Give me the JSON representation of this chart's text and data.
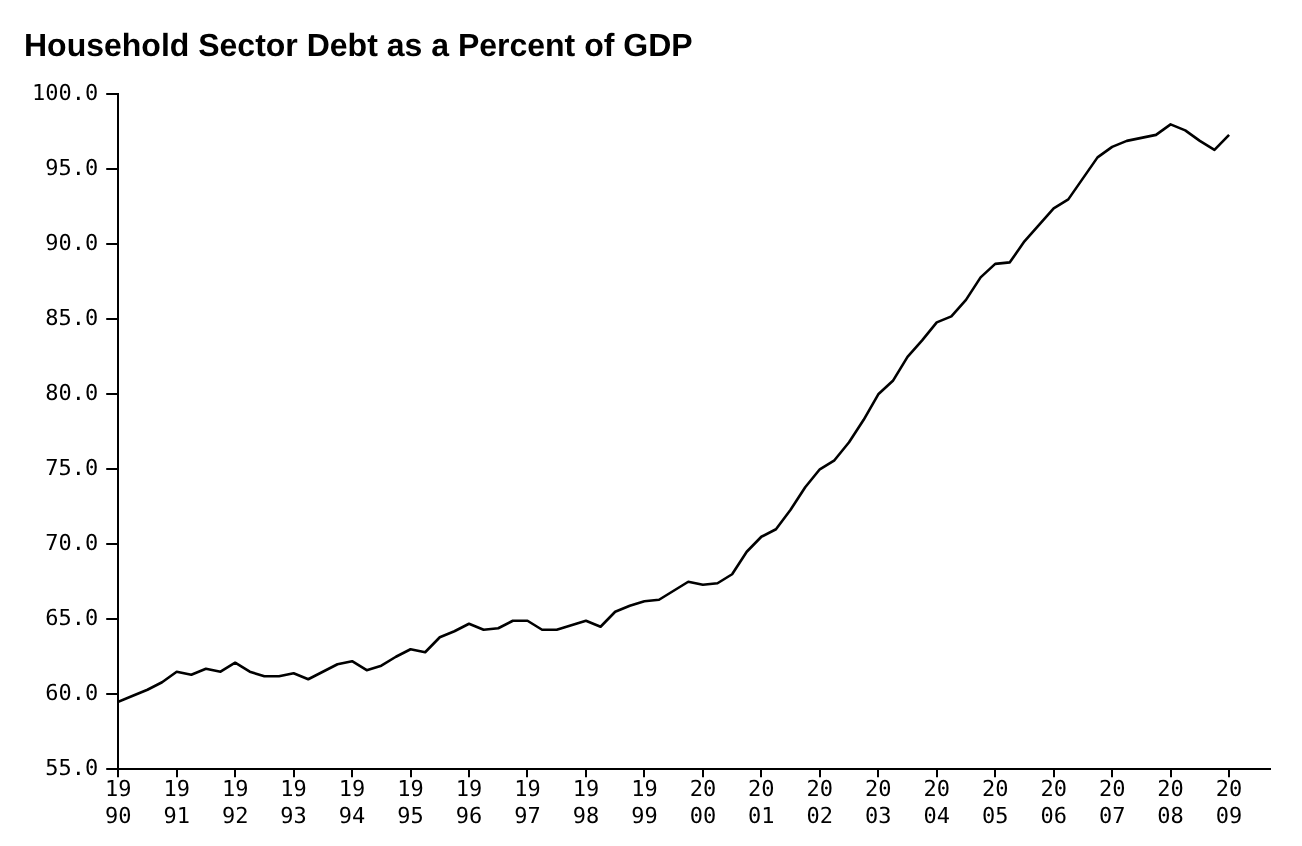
{
  "chart_data": {
    "type": "line",
    "title": "Household Sector Debt as a Percent of GDP",
    "x": [
      1990,
      1990.25,
      1990.5,
      1990.75,
      1991,
      1991.25,
      1991.5,
      1991.75,
      1992,
      1992.25,
      1992.5,
      1992.75,
      1993,
      1993.25,
      1993.5,
      1993.75,
      1994,
      1994.25,
      1994.5,
      1994.75,
      1995,
      1995.25,
      1995.5,
      1995.75,
      1996,
      1996.25,
      1996.5,
      1996.75,
      1997,
      1997.25,
      1997.5,
      1997.75,
      1998,
      1998.25,
      1998.5,
      1998.75,
      1999,
      1999.25,
      1999.5,
      1999.75,
      2000,
      2000.25,
      2000.5,
      2000.75,
      2001,
      2001.25,
      2001.5,
      2001.75,
      2002,
      2002.25,
      2002.5,
      2002.75,
      2003,
      2003.25,
      2003.5,
      2003.75,
      2004,
      2004.25,
      2004.5,
      2004.75,
      2005,
      2005.25,
      2005.5,
      2005.75,
      2006,
      2006.25,
      2006.5,
      2006.75,
      2007,
      2007.25,
      2007.5,
      2007.75,
      2008,
      2008.25,
      2008.5,
      2008.75,
      2009
    ],
    "series": [
      {
        "color": "#000000",
        "values": [
          59.5,
          59.9,
          60.3,
          60.8,
          61.5,
          61.3,
          61.7,
          61.5,
          62.1,
          61.5,
          61.2,
          61.2,
          61.4,
          61.0,
          61.5,
          62.0,
          62.2,
          61.6,
          61.9,
          62.5,
          63.0,
          62.8,
          63.8,
          64.2,
          64.7,
          64.3,
          64.4,
          64.9,
          64.9,
          64.3,
          64.3,
          64.6,
          64.9,
          64.5,
          65.5,
          65.9,
          66.2,
          66.3,
          66.9,
          67.5,
          67.3,
          67.4,
          68.0,
          69.5,
          70.5,
          71.0,
          72.3,
          73.8,
          75.0,
          75.6,
          76.8,
          78.3,
          80.0,
          80.9,
          82.5,
          83.6,
          84.8,
          85.2,
          86.3,
          87.8,
          88.7,
          88.8,
          90.2,
          91.3,
          92.4,
          93.0,
          94.4,
          95.8,
          96.5,
          96.9,
          97.1,
          97.3,
          98.0,
          97.6,
          96.9,
          96.3,
          97.3
        ]
      }
    ],
    "xlim": [
      1990,
      2009.7
    ],
    "xticks": [
      1990,
      1991,
      1992,
      1993,
      1994,
      1995,
      1996,
      1997,
      1998,
      1999,
      2000,
      2001,
      2002,
      2003,
      2004,
      2005,
      2006,
      2007,
      2008,
      2009
    ],
    "ylim": [
      55,
      100
    ],
    "yticks": [
      {
        "value": 55,
        "label": "55.0"
      },
      {
        "value": 60,
        "label": "60.0"
      },
      {
        "value": 65,
        "label": "65.0"
      },
      {
        "value": 70,
        "label": "70.0"
      },
      {
        "value": 75,
        "label": "75.0"
      },
      {
        "value": 80,
        "label": "80.0"
      },
      {
        "value": 85,
        "label": "85.0"
      },
      {
        "value": 90,
        "label": "90.0"
      },
      {
        "value": 95,
        "label": "95.0"
      },
      {
        "value": 100,
        "label": "100.0"
      }
    ],
    "grid": false,
    "legend": false,
    "marker": "none",
    "line_style": "solid"
  }
}
